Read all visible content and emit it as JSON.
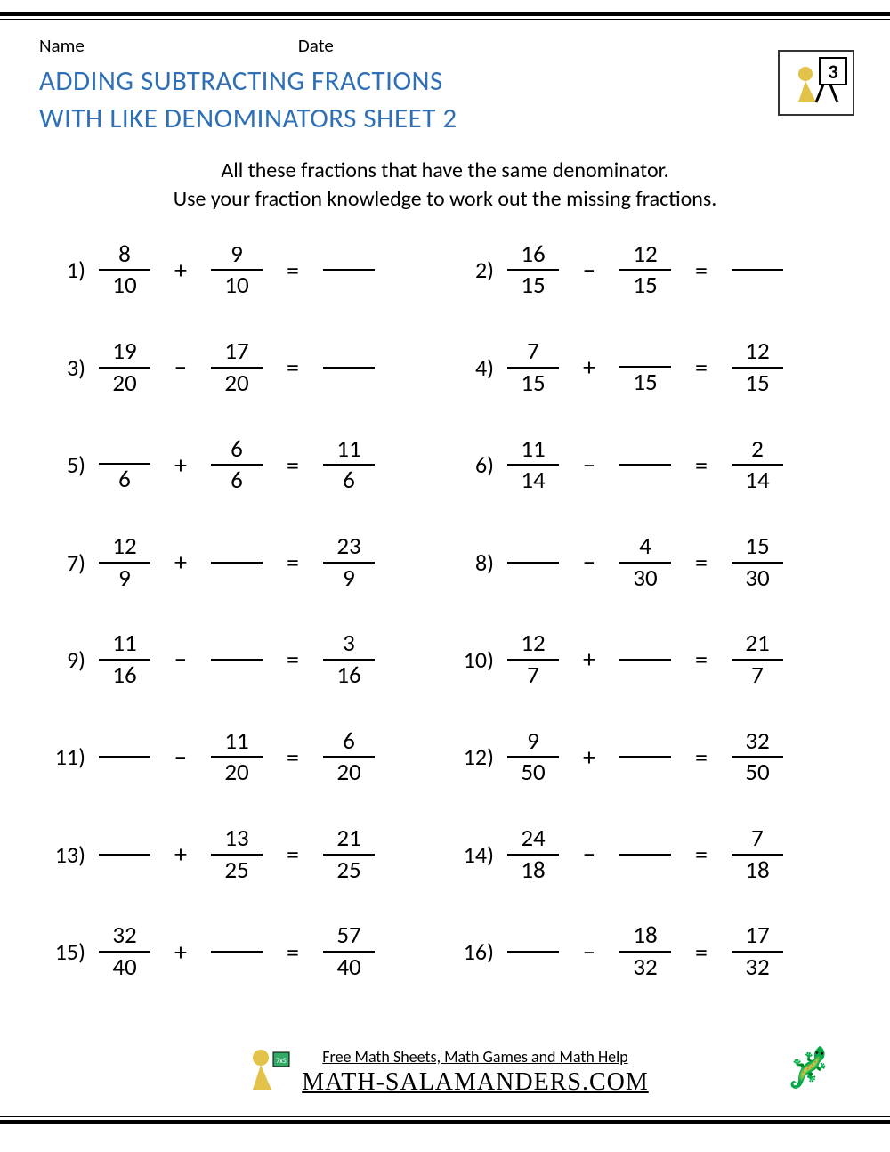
{
  "meta": {
    "name_label": "Name",
    "date_label": "Date",
    "grade": "3"
  },
  "title": {
    "line1": "ADDING SUBTRACTING FRACTIONS",
    "line2": "WITH LIKE DENOMINATORS SHEET 2",
    "color": "#2f6fb5"
  },
  "instructions": {
    "line1": "All these fractions that have the same denominator.",
    "line2": "Use your fraction knowledge to work out the missing fractions."
  },
  "problems": [
    {
      "n": "1)",
      "a": {
        "num": "8",
        "den": "10"
      },
      "op": "+",
      "b": {
        "num": "9",
        "den": "10"
      },
      "r": {
        "type": "blankline"
      }
    },
    {
      "n": "2)",
      "a": {
        "num": "16",
        "den": "15"
      },
      "op": "−",
      "b": {
        "num": "12",
        "den": "15"
      },
      "r": {
        "type": "blankline"
      }
    },
    {
      "n": "3)",
      "a": {
        "num": "19",
        "den": "20"
      },
      "op": "−",
      "b": {
        "num": "17",
        "den": "20"
      },
      "r": {
        "type": "blankline"
      }
    },
    {
      "n": "4)",
      "a": {
        "num": "7",
        "den": "15"
      },
      "op": "+",
      "b": {
        "num": "",
        "den": "15"
      },
      "r": {
        "num": "12",
        "den": "15"
      }
    },
    {
      "n": "5)",
      "a": {
        "num": "",
        "den": "6"
      },
      "op": "+",
      "b": {
        "num": "6",
        "den": "6"
      },
      "r": {
        "num": "11",
        "den": "6"
      }
    },
    {
      "n": "6)",
      "a": {
        "num": "11",
        "den": "14"
      },
      "op": "−",
      "b": {
        "type": "blankline"
      },
      "r": {
        "num": "2",
        "den": "14"
      }
    },
    {
      "n": "7)",
      "a": {
        "num": "12",
        "den": "9"
      },
      "op": "+",
      "b": {
        "type": "blankline"
      },
      "r": {
        "num": "23",
        "den": "9"
      }
    },
    {
      "n": "8)",
      "a": {
        "type": "blankline"
      },
      "op": "−",
      "b": {
        "num": "4",
        "den": "30"
      },
      "r": {
        "num": "15",
        "den": "30"
      }
    },
    {
      "n": "9)",
      "a": {
        "num": "11",
        "den": "16"
      },
      "op": "−",
      "b": {
        "type": "blankline"
      },
      "r": {
        "num": "3",
        "den": "16"
      }
    },
    {
      "n": "10)",
      "a": {
        "num": "12",
        "den": "7"
      },
      "op": "+",
      "b": {
        "type": "blankline"
      },
      "r": {
        "num": "21",
        "den": "7"
      }
    },
    {
      "n": "11)",
      "a": {
        "type": "blankline"
      },
      "op": "−",
      "b": {
        "num": "11",
        "den": "20"
      },
      "r": {
        "num": "6",
        "den": "20"
      }
    },
    {
      "n": "12)",
      "a": {
        "num": "9",
        "den": "50"
      },
      "op": "+",
      "b": {
        "type": "blankline"
      },
      "r": {
        "num": "32",
        "den": "50"
      }
    },
    {
      "n": "13)",
      "a": {
        "type": "blankline"
      },
      "op": "+",
      "b": {
        "num": "13",
        "den": "25"
      },
      "r": {
        "num": "21",
        "den": "25"
      }
    },
    {
      "n": "14)",
      "a": {
        "num": "24",
        "den": "18"
      },
      "op": "−",
      "b": {
        "type": "blankline"
      },
      "r": {
        "num": "7",
        "den": "18"
      }
    },
    {
      "n": "15)",
      "a": {
        "num": "32",
        "den": "40"
      },
      "op": "+",
      "b": {
        "type": "blankline"
      },
      "r": {
        "num": "57",
        "den": "40"
      }
    },
    {
      "n": "16)",
      "a": {
        "type": "blankline"
      },
      "op": "−",
      "b": {
        "num": "18",
        "den": "32"
      },
      "r": {
        "num": "17",
        "den": "32"
      }
    }
  ],
  "footer": {
    "line1": "Free Math Sheets, Math Games and Math Help",
    "line2": "MATH-SALAMANDERS.COM"
  }
}
